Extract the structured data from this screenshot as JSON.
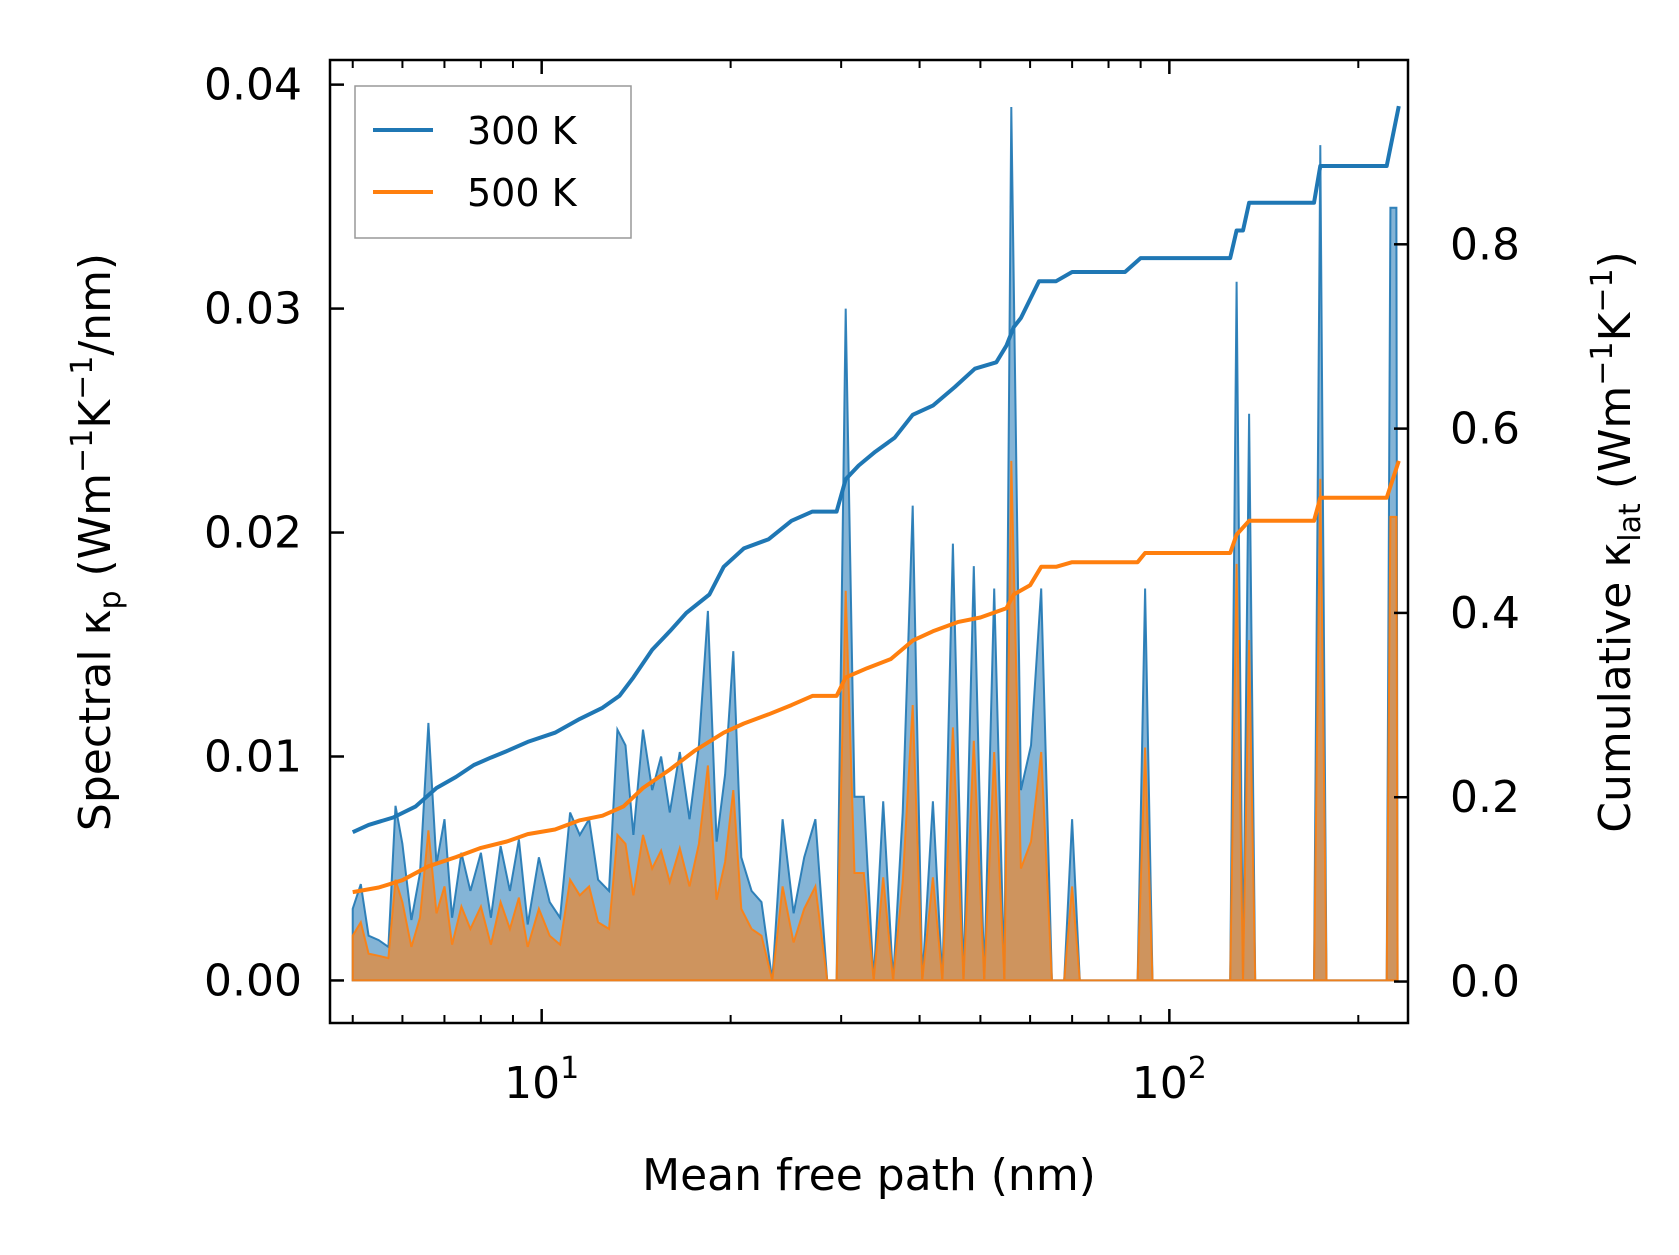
{
  "chart_data": {
    "type": "line",
    "xscale": "log",
    "xlim": [
      4.6,
      240
    ],
    "xlabel": "Mean free path (nm)",
    "x_tick_labels": [
      {
        "value": 10,
        "base": "10",
        "exp": "1"
      },
      {
        "value": 100,
        "base": "10",
        "exp": "2"
      }
    ],
    "y_left": {
      "label_prefix": "Spectral κ",
      "label_sub": "p",
      "label_part1": " (Wm",
      "label_sup1": "−1",
      "label_part2": "K",
      "label_sup2": "−1",
      "label_part3": "/nm)",
      "ylim": [
        -0.0019,
        0.0411
      ],
      "ticks": [
        0.0,
        0.01,
        0.02,
        0.03,
        0.04
      ],
      "tick_labels": [
        "0.00",
        "0.01",
        "0.02",
        "0.03",
        "0.04"
      ]
    },
    "y_right": {
      "label_prefix": "Cumulative κ",
      "label_sub": "lat",
      "label_part1": " (Wm",
      "label_sup1": "−1",
      "label_part2": "K",
      "label_sup2": "−1",
      "label_part3": ")",
      "ylim": [
        -0.045,
        1.0
      ],
      "ticks": [
        0.0,
        0.2,
        0.4,
        0.6,
        0.8
      ],
      "tick_labels": [
        "0.0",
        "0.2",
        "0.4",
        "0.6",
        "0.8"
      ]
    },
    "legend": {
      "placement": "upper-left",
      "entries": [
        {
          "label": "300 K",
          "color": "#1f77b4"
        },
        {
          "label": "500 K",
          "color": "#ff7f0e"
        }
      ]
    },
    "series": [
      {
        "name": "300 K spectral",
        "axis": "left",
        "fill": "#1f77b4",
        "points": [
          [
            5.0,
            0.0032
          ],
          [
            5.15,
            0.0043
          ],
          [
            5.3,
            0.002
          ],
          [
            5.5,
            0.0018
          ],
          [
            5.7,
            0.0015
          ],
          [
            5.85,
            0.0078
          ],
          [
            6.0,
            0.0061
          ],
          [
            6.2,
            0.0027
          ],
          [
            6.4,
            0.0048
          ],
          [
            6.6,
            0.0115
          ],
          [
            6.8,
            0.0052
          ],
          [
            7.0,
            0.0072
          ],
          [
            7.2,
            0.0028
          ],
          [
            7.45,
            0.0057
          ],
          [
            7.7,
            0.004
          ],
          [
            8.0,
            0.0057
          ],
          [
            8.3,
            0.0028
          ],
          [
            8.6,
            0.006
          ],
          [
            8.9,
            0.004
          ],
          [
            9.2,
            0.0063
          ],
          [
            9.5,
            0.0025
          ],
          [
            9.9,
            0.0055
          ],
          [
            10.3,
            0.0035
          ],
          [
            10.7,
            0.0028
          ],
          [
            11.1,
            0.0075
          ],
          [
            11.5,
            0.0065
          ],
          [
            11.9,
            0.0072
          ],
          [
            12.3,
            0.0045
          ],
          [
            12.8,
            0.004
          ],
          [
            13.2,
            0.0112
          ],
          [
            13.6,
            0.0105
          ],
          [
            14.0,
            0.0065
          ],
          [
            14.5,
            0.0112
          ],
          [
            15.0,
            0.0085
          ],
          [
            15.5,
            0.01
          ],
          [
            16.0,
            0.0075
          ],
          [
            16.6,
            0.0102
          ],
          [
            17.2,
            0.0072
          ],
          [
            17.8,
            0.0105
          ],
          [
            18.4,
            0.0165
          ],
          [
            19.0,
            0.0062
          ],
          [
            19.6,
            0.0092
          ],
          [
            20.2,
            0.0147
          ],
          [
            20.8,
            0.0055
          ],
          [
            21.6,
            0.004
          ],
          [
            22.4,
            0.0035
          ],
          [
            23.3,
            0.0
          ],
          [
            24.2,
            0.0072
          ],
          [
            25.2,
            0.003
          ],
          [
            26.2,
            0.0055
          ],
          [
            27.3,
            0.0072
          ],
          [
            28.5,
            0.0
          ],
          [
            29.5,
            0.0
          ],
          [
            30.5,
            0.03
          ],
          [
            31.5,
            0.0082
          ],
          [
            32.6,
            0.0082
          ],
          [
            33.8,
            0.0
          ],
          [
            35.0,
            0.008
          ],
          [
            36.3,
            0.0
          ],
          [
            37.6,
            0.0075
          ],
          [
            39.0,
            0.0212
          ],
          [
            40.4,
            0.0
          ],
          [
            42.0,
            0.008
          ],
          [
            43.5,
            0.0
          ],
          [
            45.2,
            0.0195
          ],
          [
            47.0,
            0.0
          ],
          [
            48.8,
            0.0185
          ],
          [
            50.7,
            0.0
          ],
          [
            52.6,
            0.0175
          ],
          [
            54.6,
            0.0
          ],
          [
            56.0,
            0.039
          ],
          [
            58.0,
            0.0085
          ],
          [
            60.2,
            0.0105
          ],
          [
            62.5,
            0.0175
          ],
          [
            65.0,
            0.0
          ],
          [
            68.0,
            0.0
          ],
          [
            70.0,
            0.0072
          ],
          [
            72.0,
            0.0
          ],
          [
            89.0,
            0.0
          ],
          [
            91.5,
            0.0175
          ],
          [
            94.0,
            0.0
          ],
          [
            125.0,
            0.0
          ],
          [
            128.0,
            0.0312
          ],
          [
            131.0,
            0.0
          ],
          [
            134.0,
            0.0253
          ],
          [
            137.0,
            0.0
          ],
          [
            170.0,
            0.0
          ],
          [
            174.0,
            0.0373
          ],
          [
            178.0,
            0.0
          ],
          [
            222.0,
            0.0
          ],
          [
            225.0,
            0.0345
          ],
          [
            230.0,
            0.0345
          ],
          [
            231.0,
            0.0
          ]
        ]
      },
      {
        "name": "500 K spectral",
        "axis": "left",
        "fill": "#ff7f0e",
        "points": [
          [
            5.0,
            0.002
          ],
          [
            5.15,
            0.0026
          ],
          [
            5.3,
            0.0012
          ],
          [
            5.5,
            0.0011
          ],
          [
            5.7,
            0.001
          ],
          [
            5.85,
            0.0045
          ],
          [
            6.0,
            0.0035
          ],
          [
            6.2,
            0.0015
          ],
          [
            6.4,
            0.0028
          ],
          [
            6.6,
            0.0067
          ],
          [
            6.8,
            0.003
          ],
          [
            7.0,
            0.0042
          ],
          [
            7.2,
            0.0016
          ],
          [
            7.45,
            0.0033
          ],
          [
            7.7,
            0.0023
          ],
          [
            8.0,
            0.0033
          ],
          [
            8.3,
            0.0016
          ],
          [
            8.6,
            0.0035
          ],
          [
            8.9,
            0.0023
          ],
          [
            9.2,
            0.0037
          ],
          [
            9.5,
            0.0015
          ],
          [
            9.9,
            0.0032
          ],
          [
            10.3,
            0.002
          ],
          [
            10.7,
            0.0016
          ],
          [
            11.1,
            0.0045
          ],
          [
            11.5,
            0.0038
          ],
          [
            11.9,
            0.0042
          ],
          [
            12.3,
            0.0026
          ],
          [
            12.8,
            0.0023
          ],
          [
            13.2,
            0.0065
          ],
          [
            13.6,
            0.0061
          ],
          [
            14.0,
            0.0038
          ],
          [
            14.5,
            0.0065
          ],
          [
            15.0,
            0.005
          ],
          [
            15.5,
            0.0058
          ],
          [
            16.0,
            0.0044
          ],
          [
            16.6,
            0.0059
          ],
          [
            17.2,
            0.0042
          ],
          [
            17.8,
            0.0061
          ],
          [
            18.4,
            0.0096
          ],
          [
            19.0,
            0.0036
          ],
          [
            19.6,
            0.0053
          ],
          [
            20.2,
            0.0085
          ],
          [
            20.8,
            0.0032
          ],
          [
            21.6,
            0.0023
          ],
          [
            22.4,
            0.002
          ],
          [
            23.3,
            0.0
          ],
          [
            24.2,
            0.0042
          ],
          [
            25.2,
            0.0017
          ],
          [
            26.2,
            0.0032
          ],
          [
            27.3,
            0.0042
          ],
          [
            28.5,
            0.0
          ],
          [
            29.5,
            0.0
          ],
          [
            30.5,
            0.0174
          ],
          [
            31.5,
            0.0048
          ],
          [
            32.6,
            0.0048
          ],
          [
            33.8,
            0.0
          ],
          [
            35.0,
            0.0046
          ],
          [
            36.3,
            0.0
          ],
          [
            37.6,
            0.0044
          ],
          [
            39.0,
            0.0123
          ],
          [
            40.4,
            0.0
          ],
          [
            42.0,
            0.0046
          ],
          [
            43.5,
            0.0
          ],
          [
            45.2,
            0.0113
          ],
          [
            47.0,
            0.0
          ],
          [
            48.8,
            0.0107
          ],
          [
            50.7,
            0.0
          ],
          [
            52.6,
            0.0102
          ],
          [
            54.6,
            0.0
          ],
          [
            56.0,
            0.0232
          ],
          [
            58.0,
            0.005
          ],
          [
            60.2,
            0.0062
          ],
          [
            62.5,
            0.0102
          ],
          [
            65.0,
            0.0
          ],
          [
            68.0,
            0.0
          ],
          [
            70.0,
            0.0042
          ],
          [
            72.0,
            0.0
          ],
          [
            89.0,
            0.0
          ],
          [
            91.5,
            0.0104
          ],
          [
            94.0,
            0.0
          ],
          [
            125.0,
            0.0
          ],
          [
            128.0,
            0.0186
          ],
          [
            131.0,
            0.0
          ],
          [
            134.0,
            0.0152
          ],
          [
            137.0,
            0.0
          ],
          [
            170.0,
            0.0
          ],
          [
            174.0,
            0.0224
          ],
          [
            178.0,
            0.0
          ],
          [
            222.0,
            0.0
          ],
          [
            225.0,
            0.0207
          ],
          [
            230.0,
            0.0207
          ],
          [
            231.0,
            0.0
          ]
        ]
      },
      {
        "name": "300 K cumulative",
        "axis": "right",
        "color": "#1f77b4",
        "points": [
          [
            5.0,
            0.162
          ],
          [
            5.3,
            0.17
          ],
          [
            5.8,
            0.178
          ],
          [
            6.3,
            0.19
          ],
          [
            6.8,
            0.21
          ],
          [
            7.3,
            0.222
          ],
          [
            7.8,
            0.235
          ],
          [
            8.3,
            0.243
          ],
          [
            8.8,
            0.25
          ],
          [
            9.5,
            0.26
          ],
          [
            10.5,
            0.27
          ],
          [
            11.5,
            0.285
          ],
          [
            12.5,
            0.297
          ],
          [
            13.3,
            0.31
          ],
          [
            14.0,
            0.33
          ],
          [
            15.0,
            0.36
          ],
          [
            16.0,
            0.38
          ],
          [
            17.0,
            0.4
          ],
          [
            18.5,
            0.42
          ],
          [
            19.5,
            0.45
          ],
          [
            21.0,
            0.47
          ],
          [
            23.0,
            0.48
          ],
          [
            25.0,
            0.5
          ],
          [
            27.0,
            0.51
          ],
          [
            29.5,
            0.51
          ],
          [
            30.5,
            0.545
          ],
          [
            32.0,
            0.56
          ],
          [
            34.0,
            0.575
          ],
          [
            36.5,
            0.59
          ],
          [
            39.0,
            0.615
          ],
          [
            42.0,
            0.625
          ],
          [
            45.5,
            0.645
          ],
          [
            49.0,
            0.665
          ],
          [
            53.0,
            0.672
          ],
          [
            55.0,
            0.69
          ],
          [
            56.5,
            0.71
          ],
          [
            58.0,
            0.72
          ],
          [
            62.0,
            0.76
          ],
          [
            66.0,
            0.76
          ],
          [
            70.0,
            0.77
          ],
          [
            85.0,
            0.77
          ],
          [
            90.0,
            0.785
          ],
          [
            100.0,
            0.785
          ],
          [
            120.0,
            0.785
          ],
          [
            125.0,
            0.785
          ],
          [
            128.0,
            0.815
          ],
          [
            131.0,
            0.815
          ],
          [
            134.0,
            0.845
          ],
          [
            170.0,
            0.845
          ],
          [
            174.0,
            0.885
          ],
          [
            222.0,
            0.885
          ],
          [
            232.0,
            0.95
          ]
        ]
      },
      {
        "name": "500 K cumulative",
        "axis": "right",
        "color": "#ff7f0e",
        "points": [
          [
            5.0,
            0.097
          ],
          [
            5.5,
            0.102
          ],
          [
            6.0,
            0.11
          ],
          [
            6.6,
            0.125
          ],
          [
            7.3,
            0.135
          ],
          [
            8.0,
            0.145
          ],
          [
            8.8,
            0.152
          ],
          [
            9.5,
            0.16
          ],
          [
            10.5,
            0.165
          ],
          [
            11.5,
            0.175
          ],
          [
            12.5,
            0.18
          ],
          [
            13.5,
            0.19
          ],
          [
            14.5,
            0.21
          ],
          [
            16.0,
            0.23
          ],
          [
            17.5,
            0.25
          ],
          [
            19.5,
            0.27
          ],
          [
            21.0,
            0.28
          ],
          [
            23.0,
            0.29
          ],
          [
            25.0,
            0.3
          ],
          [
            27.0,
            0.31
          ],
          [
            29.5,
            0.31
          ],
          [
            30.5,
            0.33
          ],
          [
            33.0,
            0.34
          ],
          [
            36.0,
            0.35
          ],
          [
            39.0,
            0.37
          ],
          [
            42.0,
            0.38
          ],
          [
            46.0,
            0.39
          ],
          [
            50.0,
            0.395
          ],
          [
            55.0,
            0.405
          ],
          [
            56.5,
            0.42
          ],
          [
            60.0,
            0.43
          ],
          [
            62.5,
            0.45
          ],
          [
            66.0,
            0.45
          ],
          [
            70.0,
            0.455
          ],
          [
            89.0,
            0.455
          ],
          [
            91.5,
            0.465
          ],
          [
            125.0,
            0.465
          ],
          [
            128.0,
            0.485
          ],
          [
            134.0,
            0.5
          ],
          [
            170.0,
            0.5
          ],
          [
            174.0,
            0.525
          ],
          [
            222.0,
            0.525
          ],
          [
            232.0,
            0.565
          ]
        ]
      }
    ]
  }
}
